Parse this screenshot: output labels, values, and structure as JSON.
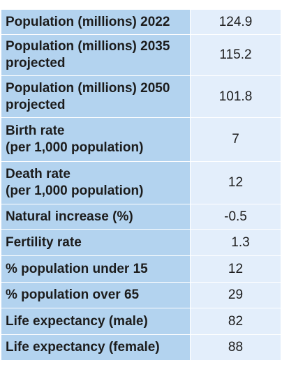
{
  "rows": [
    {
      "label": "Population (millions) 2022",
      "value": "124.9"
    },
    {
      "label": "Population (millions) 2035\nprojected",
      "value": "115.2"
    },
    {
      "label": "Population (millions) 2050\nprojected",
      "value": "101.8"
    },
    {
      "label": "Birth rate\n(per 1,000 population)",
      "value": "7"
    },
    {
      "label": "Death rate\n(per 1,000 population)",
      "value": "12"
    },
    {
      "label": "Natural increase (%)",
      "value": "-0.5"
    },
    {
      "label": "Fertility rate",
      "value": "1.3"
    },
    {
      "label": "% population under 15",
      "value": "12"
    },
    {
      "label": "% population over 65",
      "value": "29"
    },
    {
      "label": "Life expectancy (male)",
      "value": "82"
    },
    {
      "label": "Life expectancy (female)",
      "value": "88"
    }
  ]
}
